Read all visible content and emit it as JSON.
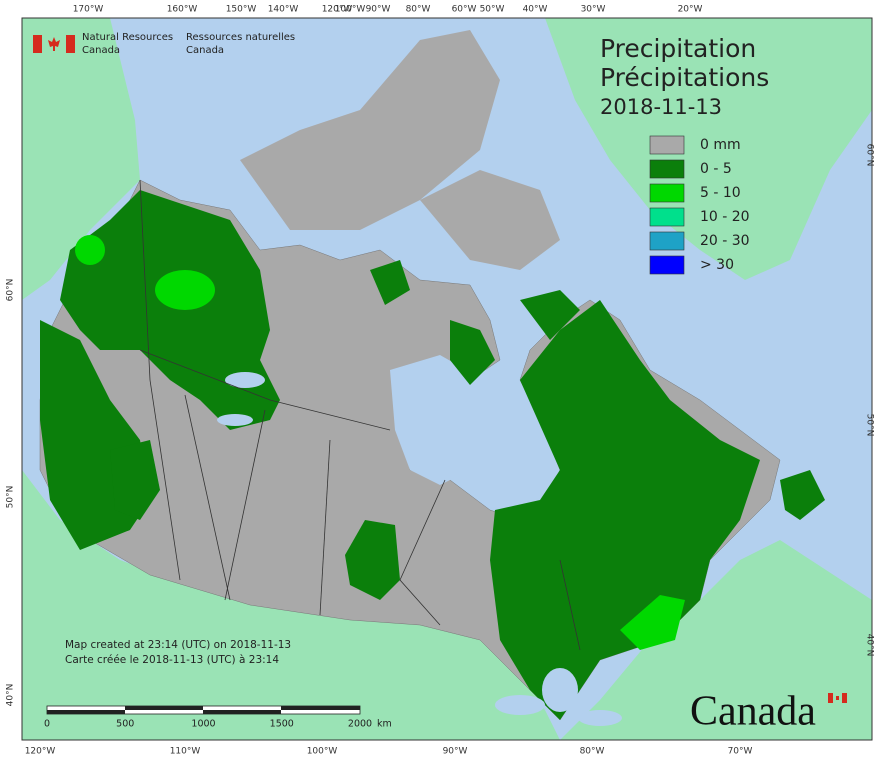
{
  "agency_en": [
    "Natural Resources",
    "Canada"
  ],
  "agency_fr": [
    "Ressources naturelles",
    "Canada"
  ],
  "title": [
    "Precipitation",
    "Précipitations"
  ],
  "date": "2018-11-13",
  "legend": [
    {
      "label": "0 mm",
      "color": "#a9a9a9"
    },
    {
      "label": "0 - 5",
      "color": "#0b7f0b"
    },
    {
      "label": "5 - 10",
      "color": "#00d800"
    },
    {
      "label": "10 - 20",
      "color": "#00e08c"
    },
    {
      "label": "20 - 30",
      "color": "#1ea2c6"
    },
    {
      "label": "> 30",
      "color": "#0000ff"
    }
  ],
  "top_longitudes": [
    "170°W",
    "160°W",
    "150°W",
    "140°W",
    "120°W",
    "100°W",
    "90°W",
    "80°W",
    "60°W",
    "50°W",
    "40°W",
    "30°W",
    "20°W"
  ],
  "bottom_longitudes": [
    "120°W",
    "110°W",
    "100°W",
    "90°W",
    "80°W",
    "70°W"
  ],
  "left_latitudes": [
    "60°N",
    "50°N",
    "40°N"
  ],
  "right_latitudes": [
    "60°N",
    "50°N",
    "40°N"
  ],
  "notes": [
    "Map created at 23:14 (UTC) on 2018-11-13",
    "Carte créée le 2018-11-13 (UTC) à 23:14"
  ],
  "scale_bar": {
    "labels": [
      "0",
      "500",
      "1000",
      "1500",
      "2000"
    ],
    "unit": "km"
  },
  "wordmark": "Canada"
}
